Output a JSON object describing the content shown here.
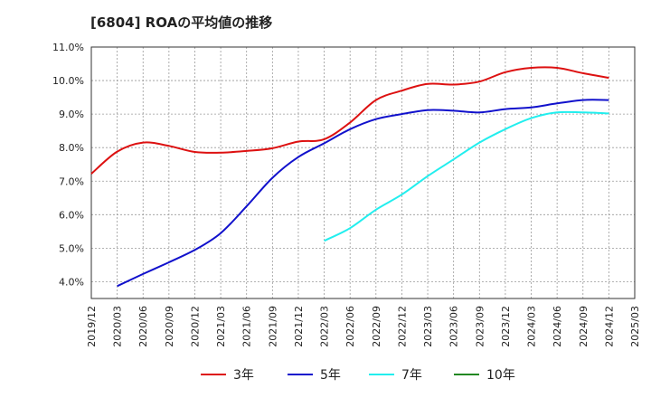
{
  "chart_data": {
    "type": "line",
    "title": "[6804]  ROAの平均値の推移",
    "ylim": [
      3.5,
      11.0
    ],
    "y_ticks": [
      "4.0%",
      "5.0%",
      "6.0%",
      "7.0%",
      "8.0%",
      "9.0%",
      "10.0%",
      "11.0%"
    ],
    "y_tick_values": [
      4.0,
      5.0,
      6.0,
      7.0,
      8.0,
      9.0,
      10.0,
      11.0
    ],
    "x": [
      "2019/12",
      "2020/03",
      "2020/06",
      "2020/09",
      "2020/12",
      "2021/03",
      "2021/06",
      "2021/09",
      "2021/12",
      "2022/03",
      "2022/06",
      "2022/09",
      "2022/12",
      "2023/03",
      "2023/06",
      "2023/09",
      "2023/12",
      "2024/03",
      "2024/06",
      "2024/09",
      "2024/12",
      "2025/03"
    ],
    "grid": true,
    "legend_position": "bottom",
    "series": [
      {
        "name": "3年",
        "color": "#dd1111",
        "values": [
          7.22,
          7.88,
          8.15,
          8.05,
          7.87,
          7.85,
          7.9,
          7.98,
          8.18,
          8.25,
          8.75,
          9.42,
          9.7,
          9.9,
          9.88,
          9.97,
          10.25,
          10.38,
          10.38,
          10.22,
          10.08,
          null
        ]
      },
      {
        "name": "5年",
        "color": "#1111cc",
        "values": [
          null,
          3.87,
          4.23,
          4.58,
          4.95,
          5.45,
          6.25,
          7.1,
          7.72,
          8.13,
          8.55,
          8.85,
          9.0,
          9.12,
          9.1,
          9.05,
          9.15,
          9.2,
          9.32,
          9.42,
          9.42,
          null
        ]
      },
      {
        "name": "7年",
        "color": "#22eeee",
        "values": [
          null,
          null,
          null,
          null,
          null,
          null,
          null,
          null,
          null,
          5.22,
          5.6,
          6.15,
          6.6,
          7.15,
          7.65,
          8.15,
          8.55,
          8.88,
          9.05,
          9.05,
          9.02,
          null
        ]
      },
      {
        "name": "10年",
        "color": "#228822",
        "values": [
          null,
          null,
          null,
          null,
          null,
          null,
          null,
          null,
          null,
          null,
          null,
          null,
          null,
          null,
          null,
          null,
          null,
          null,
          null,
          null,
          null,
          null
        ]
      }
    ]
  }
}
